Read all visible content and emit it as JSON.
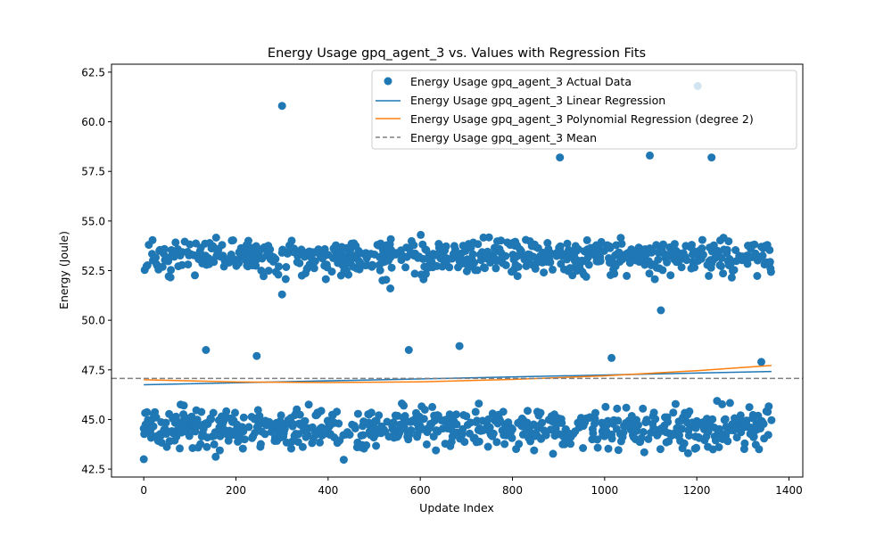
{
  "chart_data": {
    "type": "scatter",
    "title": "Energy Usage gpq_agent_3 vs. Values with Regression Fits",
    "xlabel": "Update Index",
    "ylabel": "Energy (Joule)",
    "xlim": [
      -70,
      1430
    ],
    "ylim": [
      42.1,
      62.9
    ],
    "xticks": [
      0,
      200,
      400,
      600,
      800,
      1000,
      1200,
      1400
    ],
    "yticks": [
      42.5,
      45.0,
      47.5,
      50.0,
      52.5,
      55.0,
      57.5,
      60.0,
      62.5
    ],
    "ytick_labels": [
      "42.5",
      "45.0",
      "47.5",
      "50.0",
      "52.5",
      "55.0",
      "57.5",
      "60.0",
      "62.5"
    ],
    "n_points": 1363,
    "legend_position": "top-right",
    "colors": {
      "scatter": "#1f77b4",
      "linear": "#1f77b4",
      "polynomial": "#ff7f0e",
      "mean": "#808080"
    },
    "series": [
      {
        "name": "Energy Usage gpq_agent_3 Actual Data",
        "kind": "scatter",
        "note": "two bands: ~half of points near 53.2 (range 51.6–55.5), ~half near 44.6 (range 42.9–47.0)",
        "upper_band": {
          "center": 53.2,
          "min": 51.6,
          "max": 55.5
        },
        "lower_band": {
          "center": 44.6,
          "min": 42.9,
          "max": 47.0
        },
        "outliers": [
          {
            "x": 0,
            "y": 43.0
          },
          {
            "x": 135,
            "y": 48.5
          },
          {
            "x": 245,
            "y": 48.2
          },
          {
            "x": 300,
            "y": 60.8
          },
          {
            "x": 300,
            "y": 51.3
          },
          {
            "x": 535,
            "y": 51.6
          },
          {
            "x": 575,
            "y": 48.5
          },
          {
            "x": 685,
            "y": 48.7
          },
          {
            "x": 903,
            "y": 58.2
          },
          {
            "x": 1015,
            "y": 48.1
          },
          {
            "x": 1098,
            "y": 58.3
          },
          {
            "x": 1122,
            "y": 50.5
          },
          {
            "x": 1202,
            "y": 61.8
          },
          {
            "x": 1232,
            "y": 58.2
          },
          {
            "x": 1340,
            "y": 47.9
          }
        ]
      },
      {
        "name": "Energy Usage gpq_agent_3 Linear Regression",
        "kind": "line",
        "x": [
          0,
          1362
        ],
        "y": [
          46.75,
          47.42
        ]
      },
      {
        "name": "Energy Usage gpq_agent_3 Polynomial Regression (degree 2)",
        "kind": "curve",
        "x": [
          0,
          200,
          400,
          600,
          800,
          1000,
          1200,
          1362
        ],
        "y": [
          47.0,
          46.89,
          46.86,
          46.9,
          47.02,
          47.2,
          47.46,
          47.72
        ]
      },
      {
        "name": "Energy Usage gpq_agent_3 Mean",
        "kind": "hline",
        "y": 47.07
      }
    ]
  }
}
